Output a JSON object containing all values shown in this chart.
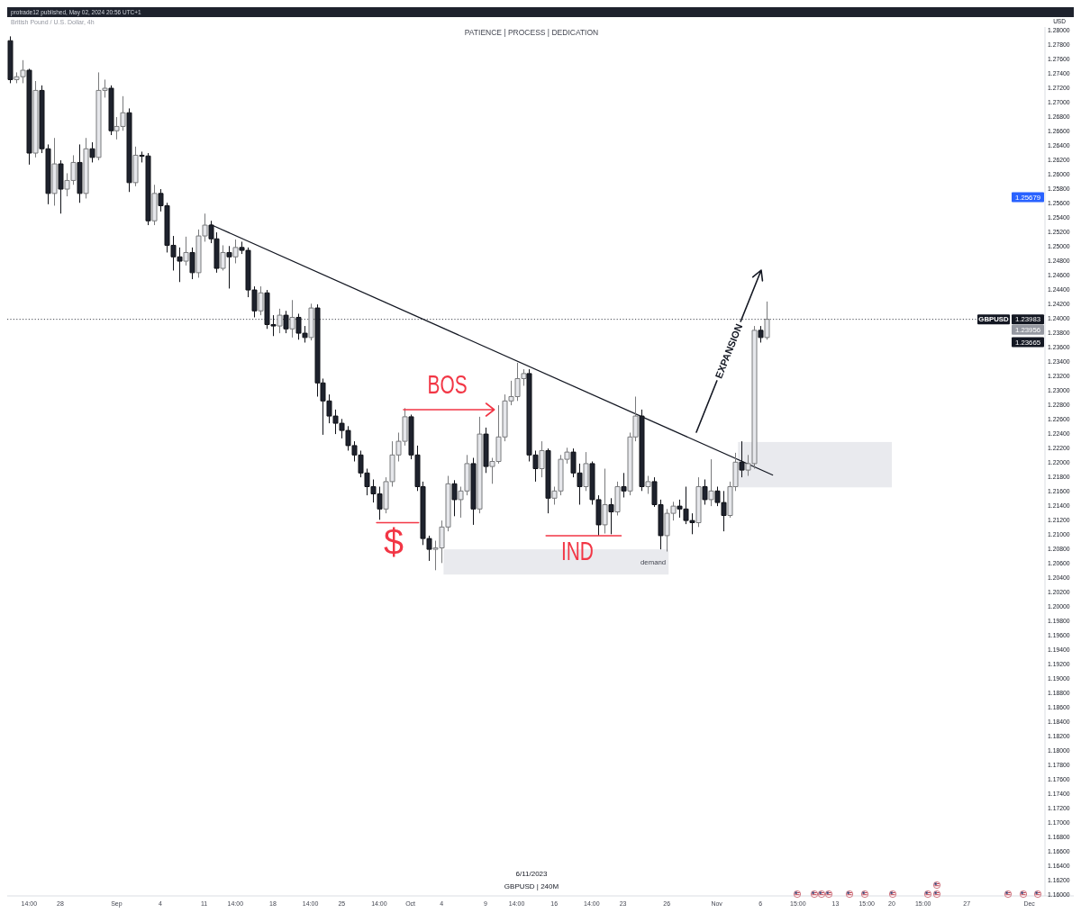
{
  "chart_data": {
    "type": "candlestick",
    "title": "PATIENCE | PROCESS | DEDICATION",
    "subtitle": "British Pound / U.S. Dollar, 4h",
    "ylabel": "USD",
    "categories": [
      null,
      null,
      null,
      "14:00",
      null,
      null,
      null,
      null,
      "28",
      null,
      null,
      null,
      null,
      null,
      null,
      null,
      null,
      "Sep",
      null,
      null,
      null,
      null,
      null,
      null,
      "4",
      null,
      null,
      null,
      null,
      null,
      null,
      "11",
      null,
      null,
      null,
      null,
      "14:00",
      null,
      null,
      null,
      null,
      null,
      "18",
      null,
      null,
      null,
      null,
      null,
      "14:00",
      null,
      null,
      null,
      null,
      "25",
      null,
      null,
      null,
      null,
      null,
      "14:00",
      null,
      null,
      null,
      null,
      "Oct",
      null,
      null,
      null,
      null,
      "4",
      null,
      null,
      null,
      null,
      null,
      null,
      "9",
      null,
      null,
      null,
      null,
      "14:00",
      null,
      null,
      null,
      null,
      null,
      "16",
      null,
      null,
      null,
      null,
      null,
      "14:00",
      null,
      null,
      null,
      null,
      "23",
      null,
      null,
      null,
      null,
      null,
      null,
      "26",
      null,
      null,
      null,
      null,
      null,
      null,
      null,
      "Nov",
      null,
      null,
      null,
      null,
      null,
      null,
      "6",
      null,
      null,
      null,
      null,
      null,
      "15:00",
      null,
      null,
      null,
      null,
      null,
      "13",
      null,
      null,
      null,
      null,
      "15:00",
      null,
      null,
      null,
      "20",
      null,
      null,
      null,
      null,
      "15:00",
      null,
      null,
      null,
      null,
      null,
      null,
      "27",
      null,
      null,
      null,
      null,
      null,
      null,
      null,
      null,
      null,
      "Dec",
      null,
      null
    ],
    "series": [
      {
        "ohlc": [
          [
            1.2785,
            1.2791,
            1.2726,
            1.2731
          ],
          [
            1.2731,
            1.2741,
            1.2726,
            1.2735
          ],
          [
            1.2735,
            1.2758,
            1.2726,
            1.2744
          ],
          [
            1.2744,
            1.2746,
            1.2613,
            1.2629
          ],
          [
            1.2629,
            1.2729,
            1.2623,
            1.2716
          ],
          [
            1.2716,
            1.2723,
            1.2629,
            1.2635
          ],
          [
            1.2635,
            1.2641,
            1.2558,
            1.2573
          ],
          [
            1.2573,
            1.265,
            1.2556,
            1.2614
          ],
          [
            1.2614,
            1.2619,
            1.2545,
            1.2579
          ],
          [
            1.2579,
            1.2601,
            1.2569,
            1.2591
          ],
          [
            1.2591,
            1.2626,
            1.2585,
            1.2616
          ],
          [
            1.2616,
            1.2641,
            1.256,
            1.2573
          ],
          [
            1.2573,
            1.265,
            1.2566,
            1.2635
          ],
          [
            1.2635,
            1.2644,
            1.2616,
            1.2623
          ],
          [
            1.2623,
            1.2741,
            1.2619,
            1.2716
          ],
          [
            1.2716,
            1.2731,
            1.2706,
            1.2719
          ],
          [
            1.2719,
            1.2723,
            1.2654,
            1.266
          ],
          [
            1.266,
            1.2679,
            1.2648,
            1.2666
          ],
          [
            1.2666,
            1.2708,
            1.266,
            1.2685
          ],
          [
            1.2685,
            1.2691,
            1.2575,
            1.2588
          ],
          [
            1.2588,
            1.2638,
            1.2583,
            1.2626
          ],
          [
            1.2626,
            1.2631,
            1.2616,
            1.2625
          ],
          [
            1.2625,
            1.2629,
            1.2529,
            1.2535
          ],
          [
            1.2535,
            1.2585,
            1.2529,
            1.2573
          ],
          [
            1.2573,
            1.2579,
            1.2548,
            1.2556
          ],
          [
            1.2556,
            1.256,
            1.2491,
            1.2501
          ],
          [
            1.2501,
            1.2514,
            1.2466,
            1.2485
          ],
          [
            1.2485,
            1.2498,
            1.245,
            1.2479
          ],
          [
            1.2479,
            1.2513,
            1.2473,
            1.2491
          ],
          [
            1.2491,
            1.2498,
            1.2454,
            1.2463
          ],
          [
            1.2463,
            1.2523,
            1.2456,
            1.2514
          ],
          [
            1.2514,
            1.2545,
            1.2506,
            1.2529
          ],
          [
            1.2529,
            1.2535,
            1.2504,
            1.251
          ],
          [
            1.251,
            1.2519,
            1.2463,
            1.2469
          ],
          [
            1.2469,
            1.2501,
            1.2466,
            1.2491
          ],
          [
            1.2491,
            1.25,
            1.2441,
            1.2485
          ],
          [
            1.2485,
            1.2509,
            1.2476,
            1.2498
          ],
          [
            1.2498,
            1.2506,
            1.2489,
            1.2494
          ],
          [
            1.2494,
            1.2498,
            1.2429,
            1.2439
          ],
          [
            1.2439,
            1.2444,
            1.2401,
            1.241
          ],
          [
            1.241,
            1.2444,
            1.2404,
            1.2435
          ],
          [
            1.2435,
            1.2439,
            1.2385,
            1.2391
          ],
          [
            1.2391,
            1.2404,
            1.2375,
            1.2389
          ],
          [
            1.2389,
            1.2413,
            1.2379,
            1.2404
          ],
          [
            1.2404,
            1.241,
            1.2379,
            1.2385
          ],
          [
            1.2385,
            1.2425,
            1.2373,
            1.2401
          ],
          [
            1.2401,
            1.2406,
            1.237,
            1.2379
          ],
          [
            1.2379,
            1.2389,
            1.2366,
            1.2373
          ],
          [
            1.2373,
            1.242,
            1.2369,
            1.2414
          ],
          [
            1.2414,
            1.2419,
            1.2291,
            1.231
          ],
          [
            1.231,
            1.2316,
            1.2238,
            1.2285
          ],
          [
            1.2285,
            1.2294,
            1.2254,
            1.2264
          ],
          [
            1.2264,
            1.2273,
            1.2239,
            1.2254
          ],
          [
            1.2254,
            1.226,
            1.2233,
            1.2244
          ],
          [
            1.2244,
            1.225,
            1.2216,
            1.2223
          ],
          [
            1.2223,
            1.2229,
            1.2201,
            1.221
          ],
          [
            1.221,
            1.2216,
            1.2179,
            1.2185
          ],
          [
            1.2185,
            1.2191,
            1.2154,
            1.2166
          ],
          [
            1.2166,
            1.2176,
            1.2144,
            1.2156
          ],
          [
            1.2156,
            1.2166,
            1.212,
            1.2135
          ],
          [
            1.2135,
            1.2179,
            1.2129,
            1.2173
          ],
          [
            1.2173,
            1.2229,
            1.2166,
            1.221
          ],
          [
            1.221,
            1.2241,
            1.2201,
            1.2229
          ],
          [
            1.2229,
            1.2275,
            1.2223,
            1.2263
          ],
          [
            1.2263,
            1.2266,
            1.2204,
            1.221
          ],
          [
            1.221,
            1.2223,
            1.216,
            1.2166
          ],
          [
            1.2166,
            1.2173,
            1.2085,
            1.2094
          ],
          [
            1.2094,
            1.2098,
            1.2063,
            1.2079
          ],
          [
            1.2079,
            1.2091,
            1.205,
            1.2081
          ],
          [
            1.2081,
            1.2119,
            1.206,
            1.211
          ],
          [
            1.211,
            1.2181,
            1.2104,
            1.217
          ],
          [
            1.217,
            1.2175,
            1.2125,
            1.2148
          ],
          [
            1.2148,
            1.2166,
            1.2123,
            1.216
          ],
          [
            1.216,
            1.221,
            1.2154,
            1.2198
          ],
          [
            1.2198,
            1.2206,
            1.2113,
            1.2135
          ],
          [
            1.2135,
            1.2263,
            1.2129,
            1.2239
          ],
          [
            1.2239,
            1.2248,
            1.2185,
            1.2194
          ],
          [
            1.2194,
            1.2206,
            1.217,
            1.2201
          ],
          [
            1.2201,
            1.2279,
            1.2198,
            1.2235
          ],
          [
            1.2235,
            1.2294,
            1.2229,
            1.2285
          ],
          [
            1.2285,
            1.2313,
            1.2279,
            1.2291
          ],
          [
            1.2291,
            1.2338,
            1.2285,
            1.2316
          ],
          [
            1.2316,
            1.2329,
            1.2306,
            1.2323
          ],
          [
            1.2323,
            1.2329,
            1.2201,
            1.221
          ],
          [
            1.221,
            1.2216,
            1.2173,
            1.2191
          ],
          [
            1.2191,
            1.2229,
            1.2179,
            1.2216
          ],
          [
            1.2216,
            1.2219,
            1.2129,
            1.215
          ],
          [
            1.215,
            1.2166,
            1.2141,
            1.216
          ],
          [
            1.216,
            1.221,
            1.2154,
            1.2204
          ],
          [
            1.2204,
            1.222,
            1.2198,
            1.2214
          ],
          [
            1.2214,
            1.2219,
            1.2179,
            1.2185
          ],
          [
            1.2185,
            1.2198,
            1.2141,
            1.2166
          ],
          [
            1.2166,
            1.2214,
            1.216,
            1.2198
          ],
          [
            1.2198,
            1.2201,
            1.2141,
            1.2148
          ],
          [
            1.2148,
            1.2154,
            1.2098,
            1.2113
          ],
          [
            1.2113,
            1.2191,
            1.2101,
            1.2141
          ],
          [
            1.2141,
            1.215,
            1.21,
            1.2131
          ],
          [
            1.2131,
            1.2173,
            1.2126,
            1.2166
          ],
          [
            1.2166,
            1.2185,
            1.2151,
            1.216
          ],
          [
            1.216,
            1.2241,
            1.2154,
            1.2235
          ],
          [
            1.2235,
            1.2291,
            1.2229,
            1.2264
          ],
          [
            1.2264,
            1.2273,
            1.216,
            1.2166
          ],
          [
            1.2166,
            1.2181,
            1.2156,
            1.2173
          ],
          [
            1.2173,
            1.2179,
            1.2138,
            1.2141
          ],
          [
            1.2141,
            1.2148,
            1.2079,
            1.2098
          ],
          [
            1.2098,
            1.2135,
            1.2076,
            1.2129
          ],
          [
            1.2129,
            1.2145,
            1.2119,
            1.2139
          ],
          [
            1.2139,
            1.2148,
            1.2123,
            1.2135
          ],
          [
            1.2135,
            1.2166,
            1.2114,
            1.2119
          ],
          [
            1.2119,
            1.2129,
            1.21,
            1.2116
          ],
          [
            1.2116,
            1.2179,
            1.211,
            1.2166
          ],
          [
            1.2166,
            1.2176,
            1.2141,
            1.2148
          ],
          [
            1.2148,
            1.2204,
            1.2139,
            1.216
          ],
          [
            1.216,
            1.2166,
            1.2139,
            1.2144
          ],
          [
            1.2144,
            1.216,
            1.2104,
            1.2126
          ],
          [
            1.2126,
            1.2173,
            1.2123,
            1.2166
          ],
          [
            1.2166,
            1.2213,
            1.216,
            1.22
          ],
          [
            1.22,
            1.2229,
            1.2179,
            1.2189
          ],
          [
            1.2189,
            1.221,
            1.2181,
            1.2198
          ],
          [
            1.2198,
            1.2389,
            1.2191,
            1.2383
          ],
          [
            1.2383,
            1.2389,
            1.2366,
            1.2373
          ],
          [
            1.2373,
            1.2423,
            1.237,
            1.23983
          ],
          null,
          null,
          null,
          null,
          null,
          null,
          null,
          null,
          null,
          null,
          null,
          null,
          null,
          null,
          null,
          null,
          null,
          null,
          null,
          null,
          null,
          null,
          null,
          null,
          null,
          null,
          null,
          null,
          null,
          null,
          null,
          null,
          null,
          null,
          null,
          null,
          null,
          null,
          null,
          null,
          null,
          null,
          null,
          null
        ],
        "colors": [
          "#1e222d",
          "#e6e7eb",
          "#e6e7eb",
          "#1e222d",
          "#e6e7eb",
          "#1e222d",
          "#1e222d",
          "#e6e7eb",
          "#1e222d",
          "#e6e7eb",
          "#e6e7eb",
          "#1e222d",
          "#e6e7eb",
          "#1e222d",
          "#e6e7eb",
          "#e6e7eb",
          "#1e222d",
          "#e6e7eb",
          "#e6e7eb",
          "#1e222d",
          "#e6e7eb",
          "#1e222d",
          "#1e222d",
          "#e6e7eb",
          "#1e222d",
          "#1e222d",
          "#1e222d",
          "#1e222d",
          "#e6e7eb",
          "#1e222d",
          "#e6e7eb",
          "#e6e7eb",
          "#1e222d",
          "#1e222d",
          "#e6e7eb",
          "#1e222d",
          "#e6e7eb",
          "#1e222d",
          "#1e222d",
          "#1e222d",
          "#e6e7eb",
          "#1e222d",
          "#1e222d",
          "#e6e7eb",
          "#1e222d",
          "#e6e7eb",
          "#1e222d",
          "#1e222d",
          "#e6e7eb",
          "#1e222d",
          "#1e222d",
          "#1e222d",
          "#1e222d",
          "#1e222d",
          "#1e222d",
          "#1e222d",
          "#1e222d",
          "#1e222d",
          "#1e222d",
          "#1e222d",
          "#e6e7eb",
          "#e6e7eb",
          "#e6e7eb",
          "#e6e7eb",
          "#1e222d",
          "#1e222d",
          "#1e222d",
          "#1e222d",
          "#e6e7eb",
          "#e6e7eb",
          "#e6e7eb",
          "#1e222d",
          "#e6e7eb",
          "#e6e7eb",
          "#1e222d",
          "#e6e7eb",
          "#1e222d",
          "#e6e7eb",
          "#e6e7eb",
          "#e6e7eb",
          "#e6e7eb",
          "#e6e7eb",
          "#e6e7eb",
          "#1e222d",
          "#1e222d",
          "#e6e7eb",
          "#1e222d",
          "#e6e7eb",
          "#e6e7eb",
          "#e6e7eb",
          "#1e222d",
          "#1e222d",
          "#e6e7eb",
          "#1e222d",
          "#1e222d",
          "#e6e7eb",
          "#1e222d",
          "#e6e7eb",
          "#1e222d",
          "#e6e7eb",
          "#e6e7eb",
          "#1e222d",
          "#e6e7eb",
          "#1e222d",
          "#1e222d",
          "#e6e7eb",
          "#e6e7eb",
          "#1e222d",
          "#1e222d",
          "#1e222d",
          "#e6e7eb",
          "#1e222d",
          "#e6e7eb",
          "#1e222d",
          "#1e222d",
          "#e6e7eb",
          "#e6e7eb",
          "#1e222d",
          "#e6e7eb",
          "#e6e7eb",
          "#1e222d",
          "#e6e7eb",
          null,
          null,
          null,
          null,
          null,
          null,
          null,
          null,
          null,
          null,
          null,
          null,
          null,
          null,
          null,
          null,
          null,
          null,
          null,
          null,
          null,
          null,
          null,
          null,
          null,
          null,
          null,
          null,
          null,
          null,
          null,
          null,
          null,
          null,
          null,
          null,
          null,
          null,
          null,
          null,
          null,
          null,
          null,
          null
        ]
      },
      {
        "type": "line",
        "color": "#131722",
        "values": [
          null,
          null,
          null,
          null,
          null,
          null,
          null,
          null,
          null,
          null,
          null,
          null,
          null,
          null,
          null,
          null,
          null,
          null,
          null,
          null,
          null,
          null,
          null,
          null,
          null,
          null,
          null,
          null,
          null,
          null,
          null,
          null,
          1.253,
          null,
          null,
          null,
          null,
          null,
          null,
          null,
          null,
          null,
          null,
          null,
          null,
          null,
          null,
          null,
          null,
          null,
          null,
          null,
          null,
          null,
          null,
          null,
          null,
          null,
          null,
          null,
          null,
          null,
          null,
          null,
          null,
          null,
          null,
          null,
          null,
          null,
          null,
          null,
          null,
          null,
          null,
          null,
          null,
          null,
          null,
          null,
          null,
          null,
          null,
          null,
          null,
          null,
          null,
          null,
          null,
          null,
          null,
          null,
          null,
          null,
          null,
          null,
          null,
          null,
          null,
          null,
          null,
          null,
          null,
          null,
          null,
          null,
          null,
          null,
          null,
          null,
          null,
          null,
          null,
          null,
          null,
          null,
          null,
          null,
          null,
          null,
          null,
          null,
          1.2182,
          null,
          null,
          null,
          null,
          null,
          null,
          null,
          null,
          null,
          null,
          null,
          null,
          null,
          null,
          null,
          null,
          null,
          null,
          null,
          null,
          null,
          null,
          null,
          null,
          null,
          null,
          null,
          null,
          null,
          null,
          null,
          null,
          null,
          null,
          null,
          null,
          null,
          null,
          null,
          null,
          null,
          null,
          null
        ]
      }
    ],
    "ylim": [
      1.1598,
      1.2804
    ],
    "yticks": [
      {
        "value": 1.16,
        "label": "1.16000"
      },
      {
        "value": 1.162,
        "label": "1.16200"
      },
      {
        "value": 1.164,
        "label": "1.16400"
      },
      {
        "value": 1.166,
        "label": "1.16600"
      },
      {
        "value": 1.168,
        "label": "1.16800"
      },
      {
        "value": 1.17,
        "label": "1.17000"
      },
      {
        "value": 1.172,
        "label": "1.17200"
      },
      {
        "value": 1.174,
        "label": "1.17400"
      },
      {
        "value": 1.176,
        "label": "1.17600"
      },
      {
        "value": 1.178,
        "label": "1.17800"
      },
      {
        "value": 1.18,
        "label": "1.18000"
      },
      {
        "value": 1.182,
        "label": "1.18200"
      },
      {
        "value": 1.184,
        "label": "1.18400"
      },
      {
        "value": 1.186,
        "label": "1.18600"
      },
      {
        "value": 1.188,
        "label": "1.18800"
      },
      {
        "value": 1.19,
        "label": "1.19000"
      },
      {
        "value": 1.192,
        "label": "1.19200"
      },
      {
        "value": 1.194,
        "label": "1.19400"
      },
      {
        "value": 1.196,
        "label": "1.19600"
      },
      {
        "value": 1.198,
        "label": "1.19800"
      },
      {
        "value": 1.2,
        "label": "1.20000"
      },
      {
        "value": 1.202,
        "label": "1.20200"
      },
      {
        "value": 1.204,
        "label": "1.20400"
      },
      {
        "value": 1.206,
        "label": "1.20600"
      },
      {
        "value": 1.208,
        "label": "1.20800"
      },
      {
        "value": 1.21,
        "label": "1.21000"
      },
      {
        "value": 1.212,
        "label": "1.21200"
      },
      {
        "value": 1.214,
        "label": "1.21400"
      },
      {
        "value": 1.216,
        "label": "1.21600"
      },
      {
        "value": 1.218,
        "label": "1.21800"
      },
      {
        "value": 1.22,
        "label": "1.22000"
      },
      {
        "value": 1.222,
        "label": "1.22200"
      },
      {
        "value": 1.224,
        "label": "1.22400"
      },
      {
        "value": 1.226,
        "label": "1.22600"
      },
      {
        "value": 1.228,
        "label": "1.22800"
      },
      {
        "value": 1.23,
        "label": "1.23000"
      },
      {
        "value": 1.232,
        "label": "1.23200"
      },
      {
        "value": 1.234,
        "label": "1.23400"
      },
      {
        "value": 1.236,
        "label": "1.23600"
      },
      {
        "value": 1.238,
        "label": "1.23800"
      },
      {
        "value": 1.24,
        "label": "1.24000"
      },
      {
        "value": 1.242,
        "label": "1.24200"
      },
      {
        "value": 1.244,
        "label": "1.24400"
      },
      {
        "value": 1.246,
        "label": "1.24600"
      },
      {
        "value": 1.248,
        "label": "1.24800"
      },
      {
        "value": 1.25,
        "label": "1.25000"
      },
      {
        "value": 1.252,
        "label": "1.25200"
      },
      {
        "value": 1.254,
        "label": "1.25400"
      },
      {
        "value": 1.256,
        "label": "1.25600"
      },
      {
        "value": 1.258,
        "label": "1.25800"
      },
      {
        "value": 1.26,
        "label": "1.26000"
      },
      {
        "value": 1.262,
        "label": "1.26200"
      },
      {
        "value": 1.264,
        "label": "1.26400"
      },
      {
        "value": 1.266,
        "label": "1.26600"
      },
      {
        "value": 1.268,
        "label": "1.26800"
      },
      {
        "value": 1.27,
        "label": "1.27000"
      },
      {
        "value": 1.272,
        "label": "1.27200"
      },
      {
        "value": 1.274,
        "label": "1.27400"
      },
      {
        "value": 1.276,
        "label": "1.27600"
      },
      {
        "value": 1.278,
        "label": "1.27800"
      },
      {
        "value": 1.28,
        "label": "1.28000"
      }
    ],
    "ref_lines": [
      {
        "axis": "y",
        "value": 1.23983,
        "label": "GBPUSD",
        "color": "#131722",
        "line_style": "dotted"
      }
    ],
    "bands": [
      {
        "axis": "y",
        "from": 1.2044,
        "to": 1.2079,
        "label": "demand",
        "color": "#e9eaee"
      },
      {
        "axis": "y",
        "from": 1.2165,
        "to": 1.2228,
        "color": "#e9eaee"
      }
    ],
    "annotations": [
      "protrade12 published, May 02, 2024 20:56 UTC+1",
      "6/11/2023",
      "GBPUSD | 240M",
      "BOS",
      "$",
      "IND",
      "EXPANSION",
      "1.25679",
      "1.23983",
      "1.23956",
      "1.23665"
    ]
  }
}
